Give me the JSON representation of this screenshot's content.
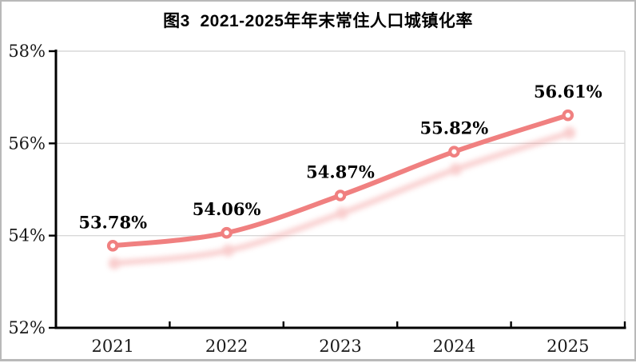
{
  "window": {
    "background_color": "#ffffff",
    "frame_border_color": "#b9b9b9"
  },
  "chart_data": {
    "type": "line",
    "title": "图3  2021-2025年年末常住人口城镇化率",
    "categories": [
      "2021",
      "2022",
      "2023",
      "2024",
      "2025"
    ],
    "values": [
      53.78,
      54.06,
      54.87,
      55.82,
      56.61
    ],
    "point_labels": [
      "53.78%",
      "54.06%",
      "54.87%",
      "55.82%",
      "56.61%"
    ],
    "xlabel": "",
    "ylabel": "",
    "ylim": [
      52,
      58
    ],
    "yticks": [
      {
        "value": 52,
        "label": "52%"
      },
      {
        "value": 54,
        "label": "54%"
      },
      {
        "value": 56,
        "label": "56%"
      },
      {
        "value": 58,
        "label": "58%"
      }
    ],
    "grid": "horizontal",
    "legend": "none",
    "line_style": "smooth",
    "marker": "open-circle",
    "has_drop_shadow": true,
    "line_color": "#F08080",
    "marker_fill": "#ffffff",
    "gridline_color": "#D9D9D9",
    "axis_color": "#000000",
    "label_color": "#000000"
  }
}
